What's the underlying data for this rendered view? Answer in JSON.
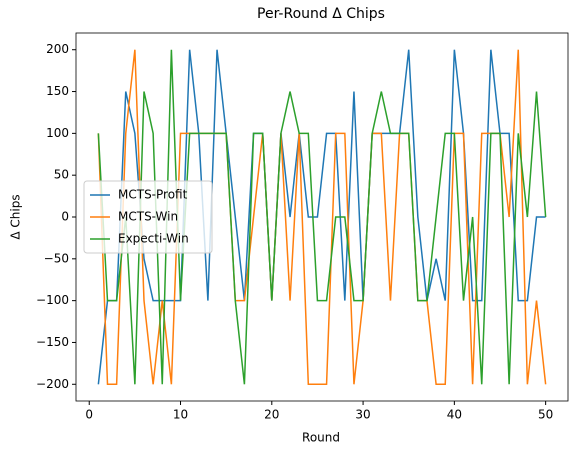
{
  "chart_data": {
    "type": "line",
    "title": "Per-Round Δ Chips",
    "xlabel": "Round",
    "ylabel": "Δ Chips",
    "x": [
      1,
      2,
      3,
      4,
      5,
      6,
      7,
      8,
      9,
      10,
      11,
      12,
      13,
      14,
      15,
      16,
      17,
      18,
      19,
      20,
      21,
      22,
      23,
      24,
      25,
      26,
      27,
      28,
      29,
      30,
      31,
      32,
      33,
      34,
      35,
      36,
      37,
      38,
      39,
      40,
      41,
      42,
      43,
      44,
      45,
      46,
      47,
      48,
      49,
      50
    ],
    "series": [
      {
        "name": "MCTS-Profit",
        "color": "#1f77b4",
        "values": [
          -200,
          -100,
          -100,
          150,
          100,
          -50,
          -100,
          -100,
          -100,
          -100,
          200,
          100,
          -100,
          200,
          100,
          0,
          -100,
          100,
          100,
          -100,
          100,
          0,
          100,
          0,
          0,
          100,
          100,
          -100,
          150,
          -100,
          100,
          100,
          100,
          100,
          200,
          0,
          -100,
          -50,
          -100,
          200,
          100,
          -100,
          -100,
          200,
          100,
          100,
          -100,
          -100,
          0,
          0
        ]
      },
      {
        "name": "MCTS-Win",
        "color": "#ff7f0e",
        "values": [
          100,
          -200,
          -200,
          100,
          200,
          -100,
          -200,
          -100,
          -200,
          100,
          100,
          100,
          100,
          100,
          100,
          -100,
          -100,
          0,
          100,
          -100,
          100,
          -100,
          100,
          -200,
          -200,
          -200,
          100,
          100,
          -200,
          -100,
          100,
          100,
          -100,
          100,
          100,
          -100,
          -100,
          -200,
          -200,
          100,
          100,
          -200,
          100,
          100,
          100,
          0,
          200,
          -200,
          -100,
          -200
        ]
      },
      {
        "name": "Expecti-Win",
        "color": "#2ca02c",
        "values": [
          100,
          -100,
          -100,
          0,
          -200,
          150,
          100,
          -200,
          200,
          -100,
          100,
          100,
          100,
          100,
          100,
          -100,
          -200,
          100,
          100,
          -100,
          100,
          150,
          100,
          100,
          -100,
          -100,
          0,
          0,
          -100,
          -100,
          100,
          150,
          100,
          100,
          100,
          -100,
          -100,
          0,
          100,
          100,
          -100,
          0,
          -200,
          100,
          100,
          -200,
          100,
          0,
          150,
          0
        ]
      }
    ],
    "xlim": [
      -1.45,
      52.45
    ],
    "xticks": [
      0,
      10,
      20,
      30,
      40,
      50
    ],
    "ylim": [
      -220,
      220
    ],
    "yticks": [
      {
        "value": -200,
        "label": "−200"
      },
      {
        "value": -150,
        "label": "−150"
      },
      {
        "value": -100,
        "label": "−100"
      },
      {
        "value": -50,
        "label": "−50"
      },
      0,
      50,
      100,
      150,
      200
    ],
    "legend": "center left"
  }
}
